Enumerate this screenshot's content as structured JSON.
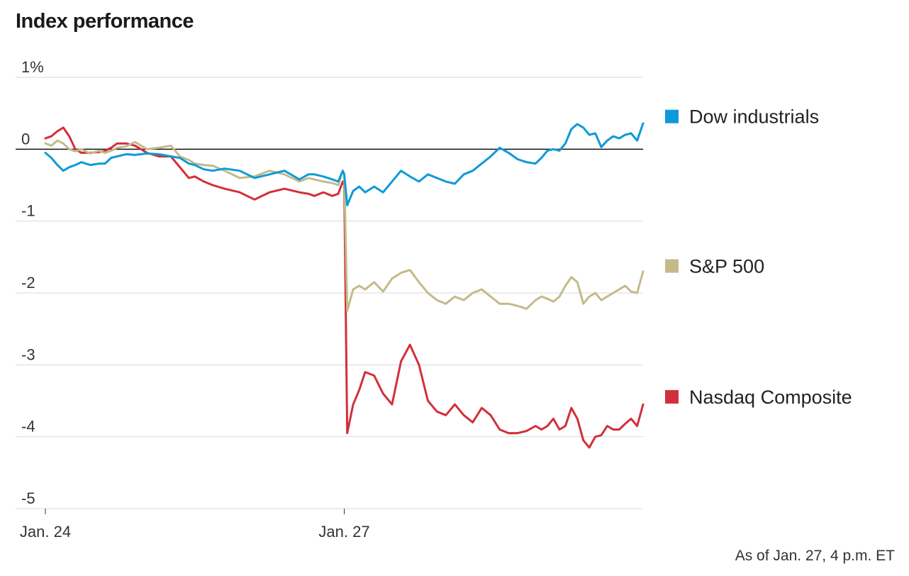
{
  "title": "Index performance",
  "footnote": "As of Jan. 27, 4 p.m. ET",
  "chart_data": {
    "type": "line",
    "title": "Index performance",
    "xlabel": "",
    "ylabel": "",
    "y_unit": "%",
    "ylim": [
      -5,
      1
    ],
    "yticks": [
      1,
      0,
      -1,
      -2,
      -3,
      -4,
      -5
    ],
    "ytick_labels": [
      "1%",
      "0",
      "-1",
      "-2",
      "-3",
      "-4",
      "-5"
    ],
    "xlim": [
      0,
      2
    ],
    "xticks": [
      0,
      1
    ],
    "xtick_labels": [
      "Jan. 24",
      "Jan. 27"
    ],
    "grid": true,
    "zero_line": true,
    "legend": "right, labels at line ends",
    "colors": {
      "dow": "#0e9ad8",
      "sp": "#c4ba8a",
      "nasdaq": "#d22f3a",
      "grid": "#d9d9d9",
      "zero": "#111111"
    },
    "series": [
      {
        "name": "Dow industrials",
        "color": "#0e9ad8",
        "x": [
          0,
          0.02,
          0.04,
          0.06,
          0.08,
          0.1,
          0.12,
          0.15,
          0.18,
          0.2,
          0.22,
          0.24,
          0.27,
          0.3,
          0.34,
          0.38,
          0.42,
          0.45,
          0.48,
          0.5,
          0.53,
          0.56,
          0.6,
          0.65,
          0.7,
          0.75,
          0.8,
          0.85,
          0.88,
          0.9,
          0.93,
          0.96,
          0.98,
          0.995,
          1.0,
          1.01,
          1.03,
          1.05,
          1.07,
          1.1,
          1.13,
          1.16,
          1.19,
          1.22,
          1.25,
          1.28,
          1.31,
          1.34,
          1.37,
          1.4,
          1.43,
          1.46,
          1.49,
          1.52,
          1.55,
          1.58,
          1.61,
          1.64,
          1.66,
          1.68,
          1.7,
          1.72,
          1.74,
          1.76,
          1.78,
          1.8,
          1.82,
          1.84,
          1.86,
          1.88,
          1.9,
          1.92,
          1.94,
          1.96,
          1.98,
          2.0
        ],
        "values": [
          -0.05,
          -0.12,
          -0.22,
          -0.3,
          -0.25,
          -0.22,
          -0.18,
          -0.22,
          -0.2,
          -0.2,
          -0.12,
          -0.1,
          -0.07,
          -0.08,
          -0.06,
          -0.07,
          -0.1,
          -0.12,
          -0.2,
          -0.22,
          -0.28,
          -0.3,
          -0.27,
          -0.3,
          -0.4,
          -0.35,
          -0.3,
          -0.42,
          -0.35,
          -0.35,
          -0.38,
          -0.42,
          -0.45,
          -0.3,
          -0.35,
          -0.78,
          -0.58,
          -0.52,
          -0.6,
          -0.52,
          -0.6,
          -0.45,
          -0.3,
          -0.38,
          -0.45,
          -0.35,
          -0.4,
          -0.45,
          -0.48,
          -0.35,
          -0.3,
          -0.2,
          -0.1,
          0.02,
          -0.05,
          -0.14,
          -0.18,
          -0.2,
          -0.12,
          -0.02,
          0.0,
          -0.02,
          0.08,
          0.28,
          0.35,
          0.3,
          0.2,
          0.22,
          0.03,
          0.12,
          0.18,
          0.15,
          0.2,
          0.22,
          0.12,
          0.36
        ]
      },
      {
        "name": "S&P 500",
        "color": "#c4ba8a",
        "x": [
          0,
          0.02,
          0.04,
          0.06,
          0.08,
          0.1,
          0.12,
          0.15,
          0.18,
          0.2,
          0.22,
          0.24,
          0.27,
          0.3,
          0.34,
          0.38,
          0.42,
          0.45,
          0.48,
          0.5,
          0.53,
          0.56,
          0.6,
          0.65,
          0.7,
          0.75,
          0.8,
          0.85,
          0.88,
          0.9,
          0.93,
          0.96,
          0.98,
          0.995,
          1.0,
          1.01,
          1.03,
          1.05,
          1.07,
          1.1,
          1.13,
          1.16,
          1.19,
          1.22,
          1.25,
          1.28,
          1.31,
          1.34,
          1.37,
          1.4,
          1.43,
          1.46,
          1.49,
          1.52,
          1.55,
          1.58,
          1.61,
          1.64,
          1.66,
          1.68,
          1.7,
          1.72,
          1.74,
          1.76,
          1.78,
          1.8,
          1.82,
          1.84,
          1.86,
          1.88,
          1.9,
          1.92,
          1.94,
          1.96,
          1.98,
          2.0
        ],
        "values": [
          0.08,
          0.05,
          0.12,
          0.08,
          0.0,
          -0.03,
          0.0,
          -0.06,
          -0.02,
          -0.05,
          -0.02,
          0.02,
          0.04,
          0.1,
          0.0,
          0.02,
          0.05,
          -0.1,
          -0.15,
          -0.2,
          -0.22,
          -0.23,
          -0.3,
          -0.4,
          -0.38,
          -0.3,
          -0.35,
          -0.45,
          -0.4,
          -0.42,
          -0.45,
          -0.47,
          -0.5,
          -0.3,
          -0.35,
          -2.25,
          -1.95,
          -1.9,
          -1.95,
          -1.85,
          -1.98,
          -1.8,
          -1.72,
          -1.68,
          -1.85,
          -2.0,
          -2.1,
          -2.15,
          -2.05,
          -2.1,
          -2.0,
          -1.95,
          -2.05,
          -2.15,
          -2.15,
          -2.18,
          -2.22,
          -2.1,
          -2.05,
          -2.08,
          -2.12,
          -2.05,
          -1.9,
          -1.78,
          -1.85,
          -2.15,
          -2.05,
          -2.0,
          -2.1,
          -2.05,
          -2.0,
          -1.95,
          -1.9,
          -1.98,
          -2.0,
          -1.7
        ]
      },
      {
        "name": "Nasdaq Composite",
        "color": "#d22f3a",
        "x": [
          0,
          0.02,
          0.04,
          0.06,
          0.08,
          0.1,
          0.12,
          0.15,
          0.18,
          0.2,
          0.22,
          0.24,
          0.27,
          0.3,
          0.34,
          0.38,
          0.42,
          0.45,
          0.48,
          0.5,
          0.53,
          0.56,
          0.6,
          0.65,
          0.7,
          0.75,
          0.8,
          0.85,
          0.88,
          0.9,
          0.93,
          0.96,
          0.98,
          0.995,
          1.0,
          1.01,
          1.03,
          1.05,
          1.07,
          1.1,
          1.13,
          1.16,
          1.19,
          1.22,
          1.25,
          1.28,
          1.31,
          1.34,
          1.37,
          1.4,
          1.43,
          1.46,
          1.49,
          1.52,
          1.55,
          1.58,
          1.61,
          1.64,
          1.66,
          1.68,
          1.7,
          1.72,
          1.74,
          1.76,
          1.78,
          1.8,
          1.82,
          1.84,
          1.86,
          1.88,
          1.9,
          1.92,
          1.94,
          1.96,
          1.98,
          2.0
        ],
        "values": [
          0.15,
          0.18,
          0.25,
          0.3,
          0.18,
          0.0,
          -0.05,
          -0.05,
          -0.04,
          -0.02,
          0.02,
          0.08,
          0.08,
          0.05,
          -0.05,
          -0.1,
          -0.1,
          -0.25,
          -0.4,
          -0.38,
          -0.45,
          -0.5,
          -0.55,
          -0.6,
          -0.7,
          -0.6,
          -0.55,
          -0.6,
          -0.62,
          -0.65,
          -0.6,
          -0.65,
          -0.62,
          -0.45,
          -0.5,
          -3.95,
          -3.55,
          -3.35,
          -3.1,
          -3.15,
          -3.4,
          -3.55,
          -2.95,
          -2.72,
          -3.0,
          -3.5,
          -3.65,
          -3.7,
          -3.55,
          -3.7,
          -3.8,
          -3.6,
          -3.7,
          -3.9,
          -3.95,
          -3.95,
          -3.92,
          -3.85,
          -3.9,
          -3.85,
          -3.75,
          -3.9,
          -3.85,
          -3.6,
          -3.75,
          -4.05,
          -4.15,
          -4.0,
          -3.98,
          -3.85,
          -3.9,
          -3.9,
          -3.82,
          -3.75,
          -3.85,
          -3.55
        ]
      }
    ]
  }
}
